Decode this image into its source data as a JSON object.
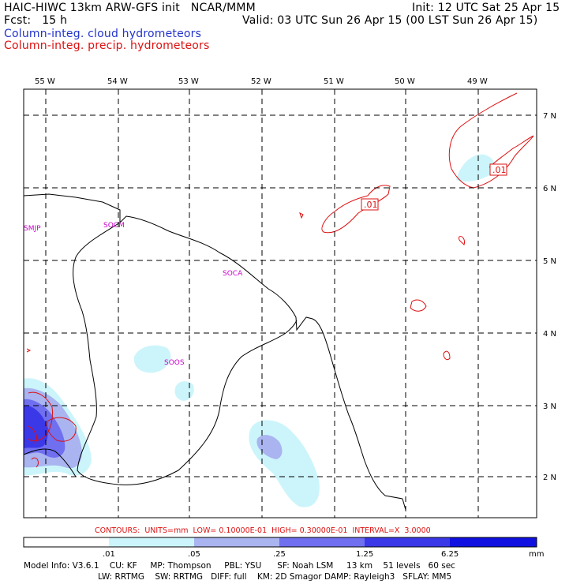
{
  "header": {
    "line1_left": "HAIC-HIWC 13km ARW-GFS init   NCAR/MMM",
    "line1_right": "Init: 12 UTC Sat 25 Apr 15",
    "line2_left": "Fcst:   15 h",
    "line2_right": "Valid: 03 UTC Sun 26 Apr 15 (00 LST Sun 26 Apr 15)",
    "legend_cloud": "Column-integ. cloud hydrometeors",
    "legend_precip": "Column-integ. precip. hydrometeors"
  },
  "colors": {
    "cloud_text": "#2233cc",
    "precip": "#dd1111",
    "station": "#cc00cc",
    "fill_levels": [
      "#ffffff",
      "#ccf5fb",
      "#aab4f0",
      "#6f6ff0",
      "#3b38e8",
      "#1010e0"
    ]
  },
  "map": {
    "lon_labels": [
      "55 W",
      "54 W",
      "53 W",
      "52 W",
      "51 W",
      "50 W",
      "49 W"
    ],
    "lat_labels": [
      "7 N",
      "6 N",
      "5 N",
      "4 N",
      "3 N",
      "2 N"
    ],
    "stations": [
      "SMJP",
      "SOCM",
      "SOCA",
      "SOOS"
    ],
    "contour_labels": [
      ".01",
      ".01"
    ]
  },
  "colorbar": {
    "contours_line": "CONTOURS:  UNITS=mm  LOW= 0.10000E-01  HIGH= 0.30000E-01  INTERVAL=X  3.0000",
    "tick_labels": [
      ".01",
      ".05",
      ".25",
      "1.25",
      "6.25"
    ],
    "units": "mm"
  },
  "footer": {
    "line1": "Model Info: V3.6.1    CU: KF     MP: Thompson     PBL: YSU      SF: Noah LSM     13 km    51 levels   60 sec",
    "line2": "LW: RRTMG    SW: RRTMG   DIFF: full    KM: 2D Smagor DAMP: Rayleigh3   SFLAY: MM5"
  }
}
